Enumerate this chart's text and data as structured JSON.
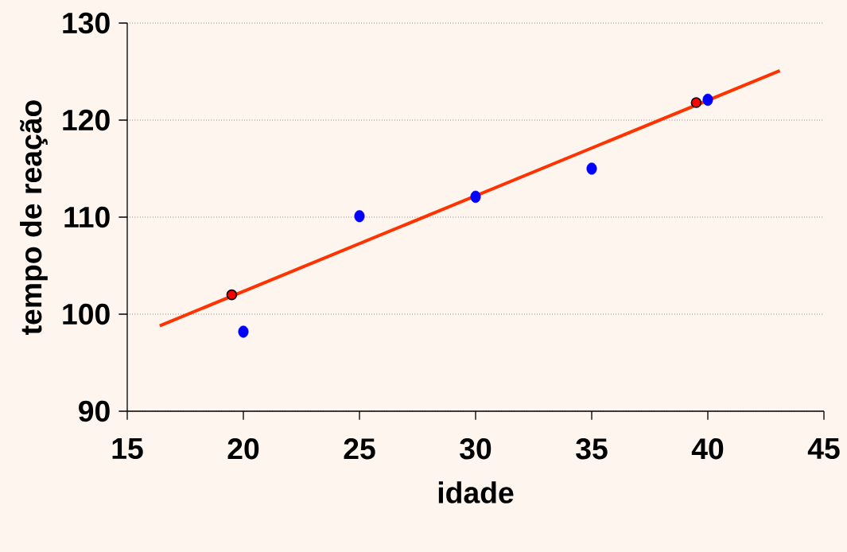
{
  "chart_data": {
    "type": "scatter",
    "xlabel": "idade",
    "ylabel": "tempo de reação",
    "xlim": [
      15,
      45
    ],
    "ylim": [
      90,
      130
    ],
    "xticks": [
      15,
      20,
      25,
      30,
      35,
      40,
      45
    ],
    "yticks": [
      90,
      100,
      110,
      120,
      130
    ],
    "grid": "y",
    "series": [
      {
        "marker": "circle",
        "color": "#0000ff",
        "x": [
          20,
          25,
          30,
          35,
          40
        ],
        "values": [
          98.2,
          110.1,
          112.1,
          115,
          122.1
        ]
      },
      {
        "type": "line",
        "marker": "none",
        "line_style": "solid",
        "color": "#ff3300",
        "x": [
          16.4,
          43.1
        ],
        "values": [
          98.8,
          125.1
        ]
      },
      {
        "marker": "circle",
        "color": "#ff0000",
        "x": [
          19.5,
          39.5
        ],
        "values": [
          102,
          121.8
        ]
      }
    ]
  }
}
